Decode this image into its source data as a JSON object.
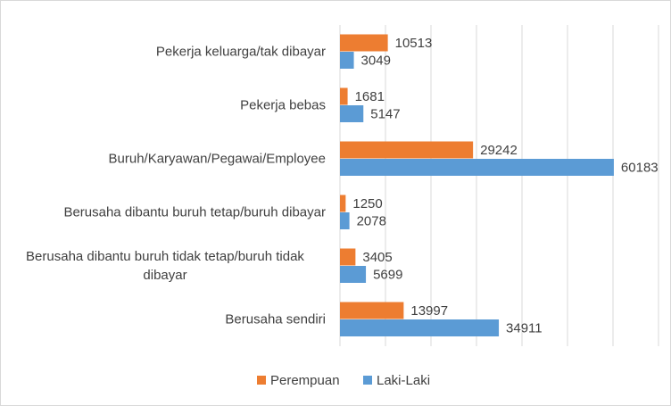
{
  "chart_data": {
    "type": "barh",
    "categories": [
      "Pekerja keluarga/tak dibayar",
      "Pekerja bebas",
      "Buruh/Karyawan/Pegawai/Employee",
      "Berusaha dibantu buruh tetap/buruh dibayar",
      "Berusaha dibantu buruh tidak tetap/buruh tidak dibayar",
      "Berusaha sendiri"
    ],
    "series": [
      {
        "name": "Perempuan",
        "color": "#ed7d31",
        "values": [
          10513,
          1681,
          29242,
          1250,
          3405,
          13997
        ]
      },
      {
        "name": "Laki-Laki",
        "color": "#5b9bd5",
        "values": [
          3049,
          5147,
          60183,
          2078,
          5699,
          34911
        ]
      }
    ],
    "xlim": [
      0,
      70000
    ],
    "xticks": [
      0,
      10000,
      20000,
      30000,
      40000,
      50000,
      60000,
      70000
    ],
    "grid": true,
    "legend": "bottom"
  }
}
